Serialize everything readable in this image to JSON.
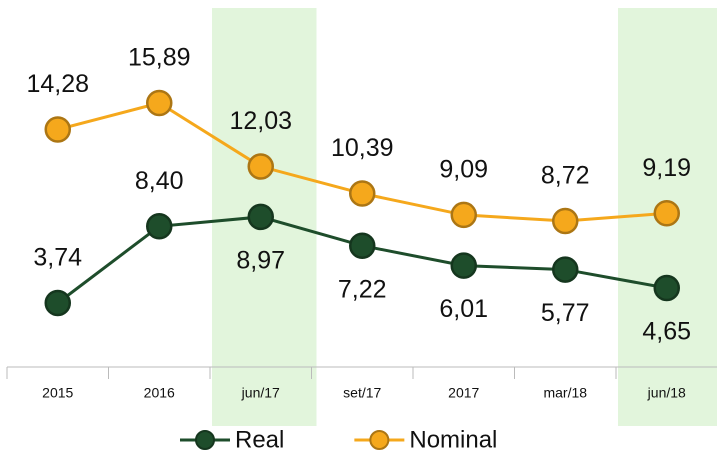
{
  "chart_data": {
    "type": "line",
    "categories": [
      "2015",
      "2016",
      "jun/17",
      "set/17",
      "2017",
      "mar/18",
      "jun/18"
    ],
    "highlight": [
      "jun/17",
      "jun/18"
    ],
    "highlight_color": "#e2f5dc",
    "series": [
      {
        "name": "Real",
        "color": "#1e4d2b",
        "values": [
          3.74,
          8.4,
          8.97,
          7.22,
          6.01,
          5.77,
          4.65
        ],
        "value_labels": [
          "3,74",
          "8,40",
          "8,97",
          "7,22",
          "6,01",
          "5,77",
          "4,65"
        ]
      },
      {
        "name": "Nominal",
        "color": "#f5a81c",
        "values": [
          14.28,
          15.89,
          12.03,
          10.39,
          9.09,
          8.72,
          9.19
        ],
        "value_labels": [
          "14,28",
          "15,89",
          "12,03",
          "10,39",
          "9,09",
          "8,72",
          "9,19"
        ]
      }
    ]
  }
}
